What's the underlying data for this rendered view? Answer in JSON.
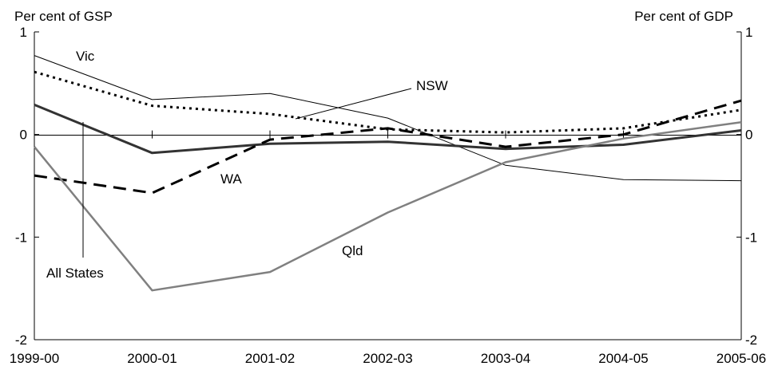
{
  "chart_data": {
    "type": "line",
    "ylabel_left": "Per cent of GSP",
    "ylabel_right": "Per cent of GDP",
    "categories": [
      "1999-00",
      "2000-01",
      "2001-02",
      "2002-03",
      "2003-04",
      "2004-05",
      "2005-06"
    ],
    "ylim": [
      -2,
      1
    ],
    "yticks": [
      1,
      0,
      -1,
      -2
    ],
    "grid": false,
    "series": [
      {
        "name": "Vic",
        "values": [
          0.77,
          0.34,
          0.4,
          0.16,
          -0.3,
          -0.44,
          -0.45
        ],
        "color": "#000000",
        "style": "thin"
      },
      {
        "name": "NSW",
        "values": [
          0.61,
          0.28,
          0.2,
          0.05,
          0.02,
          0.06,
          0.24
        ],
        "color": "#000000",
        "style": "dotted"
      },
      {
        "name": "All States",
        "values": [
          0.29,
          -0.18,
          -0.09,
          -0.07,
          -0.14,
          -0.1,
          0.04
        ],
        "color": "#333333",
        "style": "thick"
      },
      {
        "name": "WA",
        "values": [
          -0.4,
          -0.57,
          -0.05,
          0.06,
          -0.12,
          0.0,
          0.33
        ],
        "color": "#000000",
        "style": "dashed"
      },
      {
        "name": "Qld",
        "values": [
          -0.12,
          -1.52,
          -1.34,
          -0.76,
          -0.27,
          -0.04,
          0.12
        ],
        "color": "#808080",
        "style": "medium"
      }
    ],
    "annotations": [
      {
        "text": "Vic"
      },
      {
        "text": "NSW"
      },
      {
        "text": "WA"
      },
      {
        "text": "All States"
      },
      {
        "text": "Qld"
      }
    ]
  }
}
